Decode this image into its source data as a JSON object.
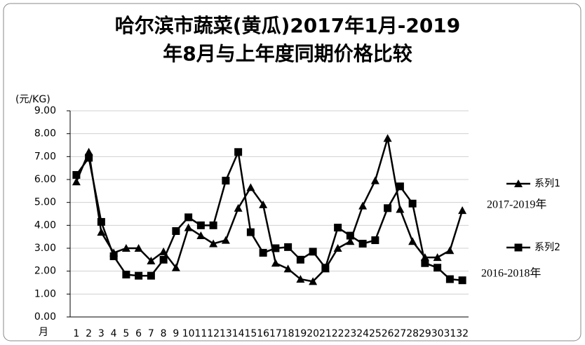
{
  "chart_data": {
    "type": "line",
    "title": [
      "哈尔滨市蔬菜(黄瓜)2017年1月-2019",
      "年8月与上年度同期价格比较"
    ],
    "y_label": "(元/KG)",
    "x_label": "月",
    "categories": [
      "1",
      "2",
      "3",
      "4",
      "5",
      "6",
      "7",
      "8",
      "9",
      "10",
      "11",
      "12",
      "13",
      "14",
      "15",
      "16",
      "17",
      "18",
      "19",
      "20",
      "21",
      "22",
      "23",
      "24",
      "25",
      "26",
      "27",
      "28",
      "29",
      "30",
      "31",
      "32"
    ],
    "series": [
      {
        "name": "系列1",
        "color": "#000000",
        "marker": "triangle",
        "values": [
          5.9,
          7.2,
          3.7,
          2.8,
          3.0,
          3.0,
          2.45,
          2.85,
          2.15,
          3.9,
          3.55,
          3.2,
          3.35,
          4.75,
          5.65,
          4.9,
          2.35,
          2.1,
          1.65,
          1.55,
          2.1,
          3.0,
          3.3,
          4.85,
          5.95,
          7.8,
          4.7,
          3.3,
          2.6,
          2.6,
          2.9,
          4.65
        ]
      },
      {
        "name": "系列2",
        "color": "#000000",
        "marker": "square",
        "values": [
          6.2,
          6.95,
          4.15,
          2.65,
          1.85,
          1.8,
          1.8,
          2.5,
          3.75,
          4.35,
          4.0,
          4.0,
          5.95,
          7.2,
          3.7,
          2.8,
          3.0,
          3.05,
          2.5,
          2.85,
          2.15,
          3.9,
          3.55,
          3.2,
          3.35,
          4.75,
          5.7,
          4.95,
          2.35,
          2.15,
          1.65,
          1.6
        ]
      }
    ],
    "annotations": [
      "2017-2019年",
      "2016-2018年"
    ],
    "ylim": [
      0,
      9
    ],
    "yticks": [
      {
        "value": 0,
        "label": "0.00"
      },
      {
        "value": 1,
        "label": "1.00"
      },
      {
        "value": 2,
        "label": "2.00"
      },
      {
        "value": 3,
        "label": "3.00"
      },
      {
        "value": 4,
        "label": "4.00"
      },
      {
        "value": 5,
        "label": "5.00"
      },
      {
        "value": 6,
        "label": "6.00"
      },
      {
        "value": 7,
        "label": "7.00"
      },
      {
        "value": 8,
        "label": "8.00"
      },
      {
        "value": 9,
        "label": "9.00"
      }
    ],
    "grid": true,
    "legend": "right"
  }
}
